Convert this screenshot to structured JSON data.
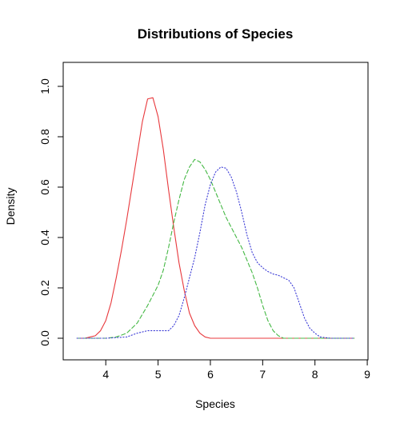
{
  "chart_data": {
    "type": "line",
    "title": "Distributions of Species",
    "xlabel": "Species",
    "ylabel": "Density",
    "xlim": [
      3.4,
      8.8
    ],
    "ylim": [
      0.0,
      1.0
    ],
    "x_ticks": [
      4,
      5,
      6,
      7,
      8,
      9
    ],
    "y_ticks": [
      0.0,
      0.2,
      0.4,
      0.6,
      0.8,
      1.0
    ],
    "x_tick_labels": [
      "4",
      "5",
      "6",
      "7",
      "8",
      "9"
    ],
    "y_tick_labels": [
      "0.0",
      "0.2",
      "0.4",
      "0.6",
      "0.8",
      "1.0"
    ],
    "grid": false,
    "series": [
      {
        "color": "#e8383c",
        "linestyle": "solid",
        "points": [
          [
            3.45,
            0.0
          ],
          [
            3.6,
            0.0
          ],
          [
            3.7,
            0.005
          ],
          [
            3.8,
            0.01
          ],
          [
            3.9,
            0.03
          ],
          [
            4.0,
            0.07
          ],
          [
            4.1,
            0.14
          ],
          [
            4.2,
            0.24
          ],
          [
            4.3,
            0.35
          ],
          [
            4.4,
            0.47
          ],
          [
            4.5,
            0.6
          ],
          [
            4.6,
            0.73
          ],
          [
            4.7,
            0.86
          ],
          [
            4.8,
            0.95
          ],
          [
            4.9,
            0.955
          ],
          [
            5.0,
            0.88
          ],
          [
            5.1,
            0.75
          ],
          [
            5.2,
            0.59
          ],
          [
            5.3,
            0.44
          ],
          [
            5.4,
            0.3
          ],
          [
            5.5,
            0.19
          ],
          [
            5.6,
            0.1
          ],
          [
            5.7,
            0.05
          ],
          [
            5.8,
            0.02
          ],
          [
            5.9,
            0.005
          ],
          [
            6.0,
            0.0
          ],
          [
            6.5,
            0.0
          ],
          [
            7.0,
            0.0
          ],
          [
            7.5,
            0.0
          ],
          [
            8.0,
            0.0
          ],
          [
            8.5,
            0.0
          ],
          [
            8.75,
            0.0
          ]
        ]
      },
      {
        "color": "#44b844",
        "linestyle": "dashed",
        "points": [
          [
            3.45,
            0.0
          ],
          [
            3.8,
            0.0
          ],
          [
            4.0,
            0.0
          ],
          [
            4.2,
            0.005
          ],
          [
            4.4,
            0.02
          ],
          [
            4.6,
            0.06
          ],
          [
            4.8,
            0.13
          ],
          [
            5.0,
            0.21
          ],
          [
            5.1,
            0.27
          ],
          [
            5.2,
            0.36
          ],
          [
            5.3,
            0.46
          ],
          [
            5.4,
            0.55
          ],
          [
            5.5,
            0.63
          ],
          [
            5.6,
            0.68
          ],
          [
            5.7,
            0.71
          ],
          [
            5.8,
            0.7
          ],
          [
            5.9,
            0.67
          ],
          [
            6.0,
            0.63
          ],
          [
            6.1,
            0.58
          ],
          [
            6.2,
            0.53
          ],
          [
            6.3,
            0.48
          ],
          [
            6.4,
            0.44
          ],
          [
            6.5,
            0.4
          ],
          [
            6.6,
            0.36
          ],
          [
            6.7,
            0.31
          ],
          [
            6.8,
            0.26
          ],
          [
            6.9,
            0.2
          ],
          [
            7.0,
            0.13
          ],
          [
            7.1,
            0.07
          ],
          [
            7.2,
            0.03
          ],
          [
            7.3,
            0.01
          ],
          [
            7.4,
            0.0
          ],
          [
            7.6,
            0.0
          ],
          [
            8.0,
            0.0
          ],
          [
            8.5,
            0.0
          ],
          [
            8.75,
            0.0
          ]
        ]
      },
      {
        "color": "#3b3bd6",
        "linestyle": "dotted",
        "points": [
          [
            3.45,
            0.0
          ],
          [
            4.0,
            0.0
          ],
          [
            4.4,
            0.005
          ],
          [
            4.6,
            0.02
          ],
          [
            4.8,
            0.03
          ],
          [
            5.0,
            0.03
          ],
          [
            5.2,
            0.03
          ],
          [
            5.3,
            0.05
          ],
          [
            5.4,
            0.09
          ],
          [
            5.5,
            0.16
          ],
          [
            5.6,
            0.24
          ],
          [
            5.7,
            0.32
          ],
          [
            5.8,
            0.42
          ],
          [
            5.9,
            0.53
          ],
          [
            6.0,
            0.61
          ],
          [
            6.1,
            0.66
          ],
          [
            6.2,
            0.68
          ],
          [
            6.3,
            0.675
          ],
          [
            6.4,
            0.64
          ],
          [
            6.5,
            0.58
          ],
          [
            6.6,
            0.5
          ],
          [
            6.7,
            0.41
          ],
          [
            6.8,
            0.34
          ],
          [
            6.9,
            0.3
          ],
          [
            7.0,
            0.28
          ],
          [
            7.1,
            0.265
          ],
          [
            7.2,
            0.255
          ],
          [
            7.3,
            0.25
          ],
          [
            7.4,
            0.24
          ],
          [
            7.5,
            0.23
          ],
          [
            7.6,
            0.2
          ],
          [
            7.7,
            0.14
          ],
          [
            7.8,
            0.08
          ],
          [
            7.9,
            0.04
          ],
          [
            8.0,
            0.02
          ],
          [
            8.1,
            0.005
          ],
          [
            8.3,
            0.0
          ],
          [
            8.75,
            0.0
          ]
        ]
      }
    ]
  }
}
